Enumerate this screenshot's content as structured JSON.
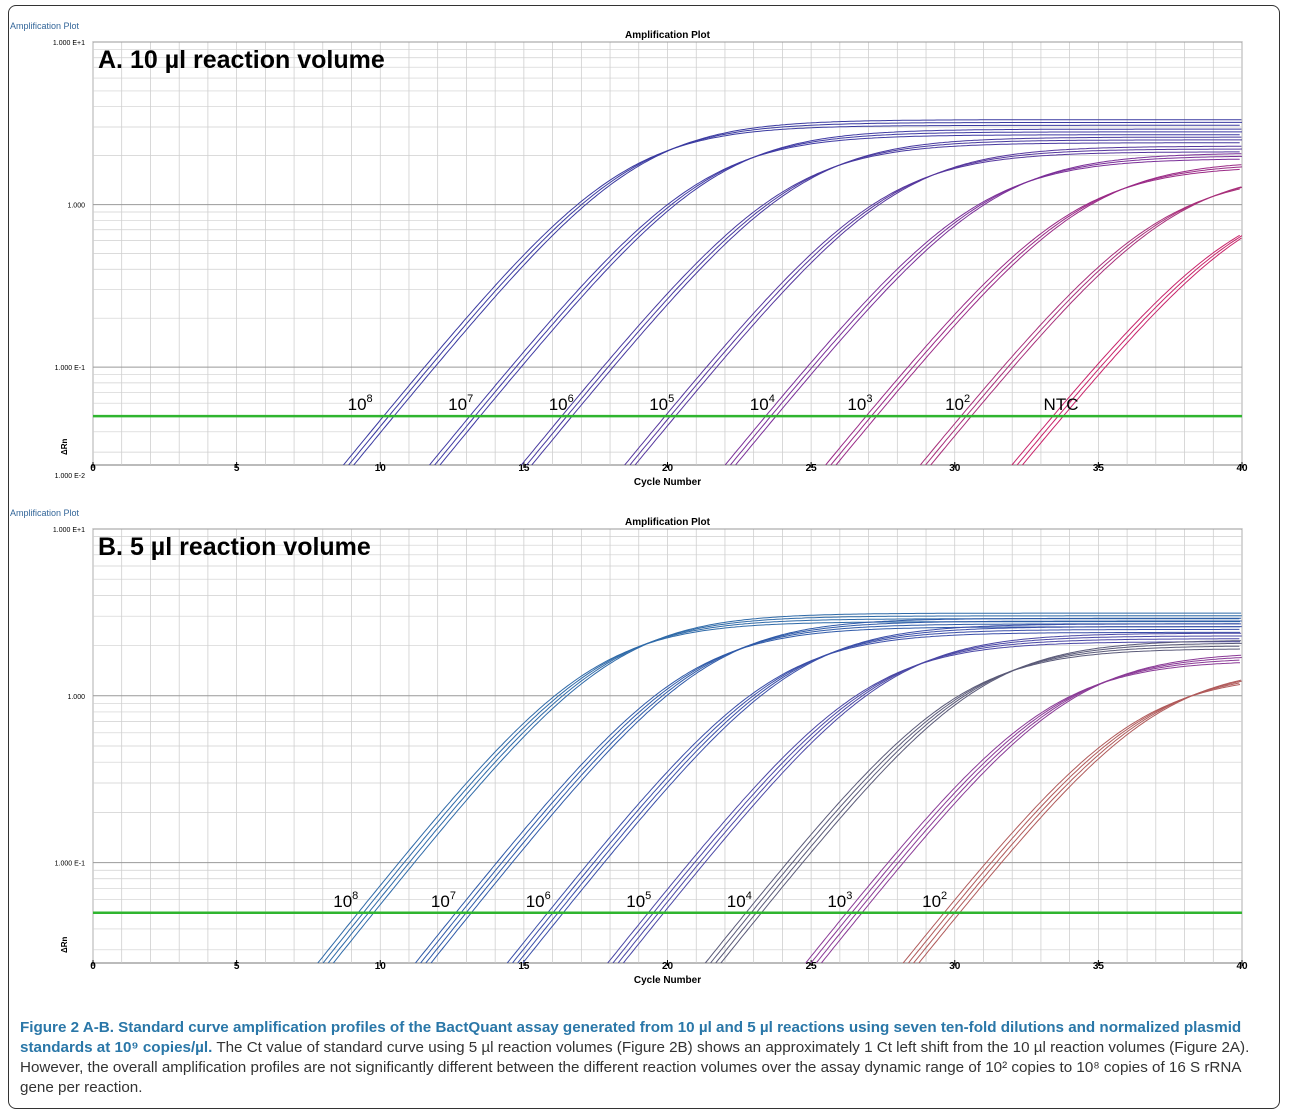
{
  "chart_data": [
    {
      "type": "line",
      "window_title": "Amplification Plot",
      "title": "Amplification Plot",
      "panel_label": "A. 10 µl reaction volume",
      "xlabel": "Cycle Number",
      "ylabel": "ΔRn",
      "xlim": [
        0,
        40
      ],
      "x_ticks": [
        "0",
        "5",
        "10",
        "15",
        "20",
        "25",
        "30",
        "35",
        "40"
      ],
      "y_scale": "log",
      "ylim": [
        0.025,
        10
      ],
      "y_tick_labels": [
        {
          "value": 10,
          "label": "1.000 E+1"
        },
        {
          "value": 1,
          "label": "1.000"
        },
        {
          "value": 0.1,
          "label": "1.000 E-1"
        },
        {
          "value": 0.01,
          "label": "1.000 E-2"
        }
      ],
      "threshold": 0.05,
      "threshold_color": "#2fb52f",
      "series": [
        {
          "name": "10^8",
          "ct": 10.3,
          "plateau": 3.2,
          "color": "#3a3aa0",
          "replicates": 3
        },
        {
          "name": "10^7",
          "ct": 13.3,
          "plateau": 2.8,
          "color": "#3f3aa3",
          "replicates": 3
        },
        {
          "name": "10^6",
          "ct": 16.5,
          "plateau": 2.5,
          "color": "#47399f",
          "replicates": 3
        },
        {
          "name": "10^5",
          "ct": 20.1,
          "plateau": 2.2,
          "color": "#55369d",
          "replicates": 3
        },
        {
          "name": "10^4",
          "ct": 23.6,
          "plateau": 2.0,
          "color": "#7a2f98",
          "replicates": 3
        },
        {
          "name": "10^3",
          "ct": 27.1,
          "plateau": 1.8,
          "color": "#9a2a86",
          "replicates": 3
        },
        {
          "name": "10^2",
          "ct": 30.4,
          "plateau": 1.6,
          "color": "#a8307a",
          "replicates": 3
        },
        {
          "name": "NTC",
          "ct": 33.6,
          "plateau": 1.3,
          "color": "#c8246a",
          "replicates": 3
        }
      ],
      "curve_labels": [
        {
          "base": "10",
          "exp": "8",
          "x": 9.3
        },
        {
          "base": "10",
          "exp": "7",
          "x": 12.8
        },
        {
          "base": "10",
          "exp": "6",
          "x": 16.3
        },
        {
          "base": "10",
          "exp": "5",
          "x": 19.8
        },
        {
          "base": "10",
          "exp": "4",
          "x": 23.3
        },
        {
          "base": "10",
          "exp": "3",
          "x": 26.7
        },
        {
          "base": "10",
          "exp": "2",
          "x": 30.1
        },
        {
          "base": "NTC",
          "exp": "",
          "x": 33.7
        }
      ]
    },
    {
      "type": "line",
      "window_title": "Amplification Plot",
      "title": "Amplification Plot",
      "panel_label": "B. 5 µl reaction volume",
      "xlabel": "Cycle Number",
      "ylabel": "ΔRn",
      "xlim": [
        0,
        40
      ],
      "x_ticks": [
        "0",
        "5",
        "10",
        "15",
        "20",
        "25",
        "30",
        "35",
        "40"
      ],
      "y_scale": "log",
      "ylim": [
        0.025,
        10
      ],
      "y_tick_labels": [
        {
          "value": 10,
          "label": "1.000 E+1"
        },
        {
          "value": 1,
          "label": "1.000"
        },
        {
          "value": 0.1,
          "label": "1.000 E-1"
        }
      ],
      "threshold": 0.05,
      "threshold_color": "#2fb52f",
      "series": [
        {
          "name": "10^8",
          "ct": 9.5,
          "plateau": 2.9,
          "color": "#2f6aa8",
          "replicates": 4
        },
        {
          "name": "10^7",
          "ct": 12.9,
          "plateau": 2.7,
          "color": "#2f5aa8",
          "replicates": 4
        },
        {
          "name": "10^6",
          "ct": 16.1,
          "plateau": 2.5,
          "color": "#3a4ea8",
          "replicates": 4
        },
        {
          "name": "10^5",
          "ct": 19.6,
          "plateau": 2.2,
          "color": "#4a47a5",
          "replicates": 4
        },
        {
          "name": "10^4",
          "ct": 23.0,
          "plateau": 2.0,
          "color": "#5a5a78",
          "replicates": 4
        },
        {
          "name": "10^3",
          "ct": 26.5,
          "plateau": 1.7,
          "color": "#8a3a96",
          "replicates": 4
        },
        {
          "name": "10^2",
          "ct": 29.9,
          "plateau": 1.4,
          "color": "#b05a5a",
          "replicates": 4
        }
      ],
      "curve_labels": [
        {
          "base": "10",
          "exp": "8",
          "x": 8.8
        },
        {
          "base": "10",
          "exp": "7",
          "x": 12.2
        },
        {
          "base": "10",
          "exp": "6",
          "x": 15.5
        },
        {
          "base": "10",
          "exp": "5",
          "x": 19.0
        },
        {
          "base": "10",
          "exp": "4",
          "x": 22.5
        },
        {
          "base": "10",
          "exp": "3",
          "x": 26.0
        },
        {
          "base": "10",
          "exp": "2",
          "x": 29.3
        }
      ]
    }
  ],
  "caption": {
    "head": "Figure 2 A-B. Standard curve amplification profiles of the BactQuant assay generated from 10 µl and 5 µl reactions using seven ten-fold dilutions and normalized plasmid standards at 10⁹ copies/µl.",
    "body": "The Ct value of standard curve using 5 µl reaction volumes (Figure 2B) shows an approximately 1 Ct left shift from the 10 µl reaction volumes (Figure 2A). However, the overall amplification profiles are not significantly different between the different reaction volumes over the assay dynamic range of 10² copies to 10⁸ copies of 16 S rRNA gene per reaction."
  }
}
